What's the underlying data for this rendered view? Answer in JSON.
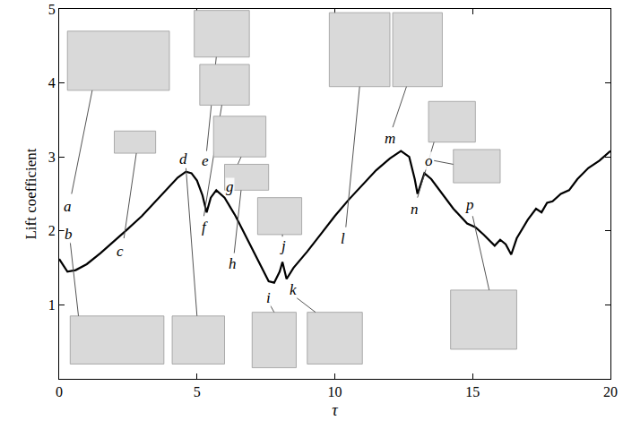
{
  "chart_data": {
    "type": "line",
    "x_label": "τ",
    "y_label": "Lift coefficient",
    "x": [
      0,
      0.3,
      0.6,
      1,
      1.5,
      2,
      2.5,
      3,
      3.5,
      4,
      4.3,
      4.6,
      4.8,
      5.0,
      5.2,
      5.35,
      5.5,
      5.7,
      6.0,
      6.4,
      6.8,
      7.2,
      7.6,
      7.8,
      8.0,
      8.1,
      8.25,
      8.5,
      9,
      9.5,
      10,
      10.5,
      11,
      11.5,
      12,
      12.4,
      12.7,
      12.9,
      13.0,
      13.1,
      13.25,
      13.5,
      13.9,
      14.3,
      14.8,
      15.1,
      15.4,
      15.8,
      16.0,
      16.2,
      16.4,
      16.6,
      17,
      17.3,
      17.5,
      17.7,
      17.9,
      18.2,
      18.5,
      18.8,
      19.2,
      19.6,
      20
    ],
    "values": [
      1.62,
      1.45,
      1.47,
      1.55,
      1.7,
      1.86,
      2.03,
      2.2,
      2.4,
      2.6,
      2.72,
      2.8,
      2.78,
      2.68,
      2.48,
      2.25,
      2.45,
      2.55,
      2.45,
      2.2,
      1.9,
      1.6,
      1.32,
      1.3,
      1.45,
      1.58,
      1.35,
      1.5,
      1.72,
      1.96,
      2.2,
      2.42,
      2.62,
      2.82,
      2.98,
      3.08,
      3.0,
      2.7,
      2.5,
      2.62,
      2.78,
      2.7,
      2.5,
      2.3,
      2.1,
      2.05,
      1.95,
      1.8,
      1.88,
      1.82,
      1.68,
      1.9,
      2.15,
      2.3,
      2.25,
      2.38,
      2.4,
      2.5,
      2.55,
      2.7,
      2.85,
      2.95,
      3.08
    ],
    "color": "#000000",
    "xlim": [
      0,
      20
    ],
    "xticks": [
      0,
      5,
      10,
      15,
      20
    ],
    "ylim": [
      0,
      5
    ],
    "yticks": [
      1,
      2,
      3,
      4,
      5
    ],
    "grid": false,
    "annotations": [
      {
        "text": "a",
        "x": 0.3,
        "y": 2.33
      },
      {
        "text": "b",
        "x": 0.35,
        "y": 1.95
      },
      {
        "text": "c",
        "x": 2.2,
        "y": 1.72
      },
      {
        "text": "d",
        "x": 4.5,
        "y": 2.97
      },
      {
        "text": "e",
        "x": 5.3,
        "y": 2.95
      },
      {
        "text": "f",
        "x": 5.3,
        "y": 2.05
      },
      {
        "text": "g",
        "x": 6.2,
        "y": 2.6
      },
      {
        "text": "h",
        "x": 6.3,
        "y": 1.55
      },
      {
        "text": "i",
        "x": 7.6,
        "y": 1.1
      },
      {
        "text": "j",
        "x": 8.1,
        "y": 1.8
      },
      {
        "text": "k",
        "x": 8.5,
        "y": 1.2
      },
      {
        "text": "l",
        "x": 10.3,
        "y": 1.9
      },
      {
        "text": "m",
        "x": 12.0,
        "y": 3.25
      },
      {
        "text": "n",
        "x": 12.9,
        "y": 2.3
      },
      {
        "text": "o",
        "x": 13.4,
        "y": 2.95
      },
      {
        "text": "p",
        "x": 14.9,
        "y": 2.35
      }
    ]
  }
}
